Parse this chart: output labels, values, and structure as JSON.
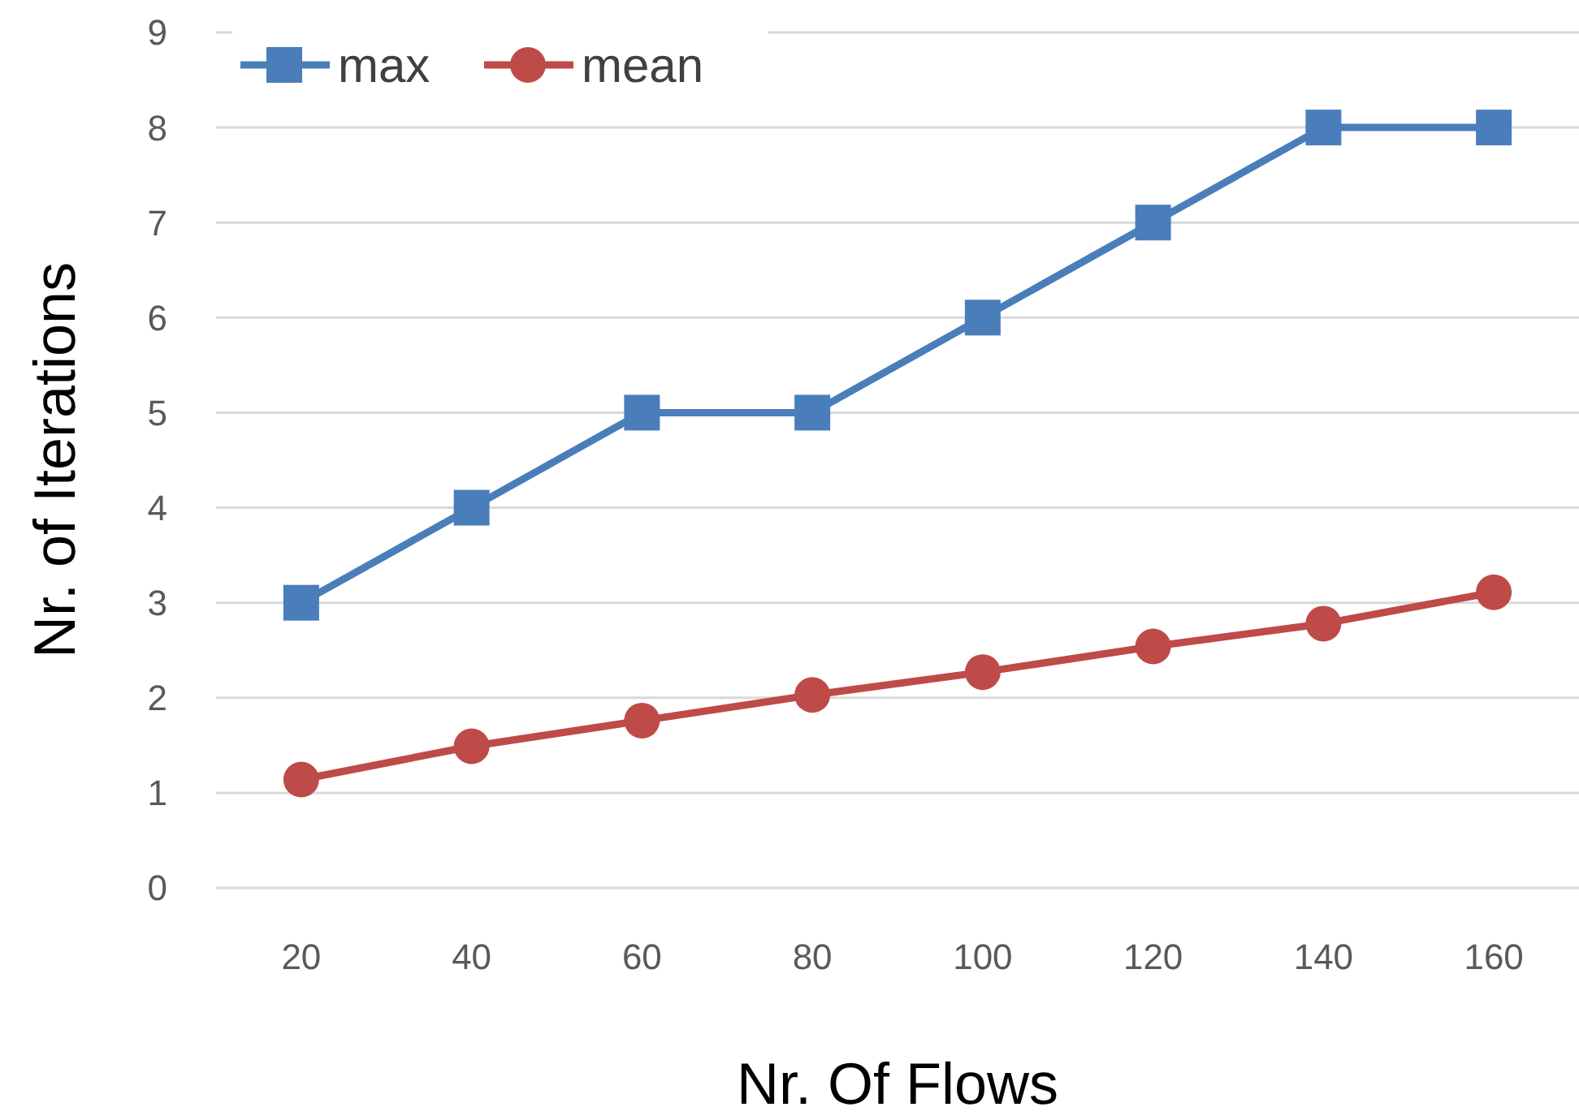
{
  "chart_data": {
    "type": "line",
    "xlabel": "Nr. Of Flows",
    "ylabel": "Nr. of Iterations",
    "categories": [
      "20",
      "40",
      "60",
      "80",
      "100",
      "120",
      "140",
      "160"
    ],
    "ylim": [
      0,
      9
    ],
    "yticks": [
      0,
      1,
      2,
      3,
      4,
      5,
      6,
      7,
      8,
      9
    ],
    "grid": "y",
    "legend": "top left",
    "line_style": "solid",
    "series": [
      {
        "name": "max",
        "color": "#4a7ebb",
        "marker": "square",
        "values": [
          3,
          4,
          5,
          5,
          6,
          7,
          8,
          8
        ]
      },
      {
        "name": "mean",
        "color": "#be4b48",
        "marker": "circle",
        "values": [
          1.14,
          1.49,
          1.76,
          2.03,
          2.27,
          2.54,
          2.78,
          3.11
        ]
      }
    ]
  }
}
